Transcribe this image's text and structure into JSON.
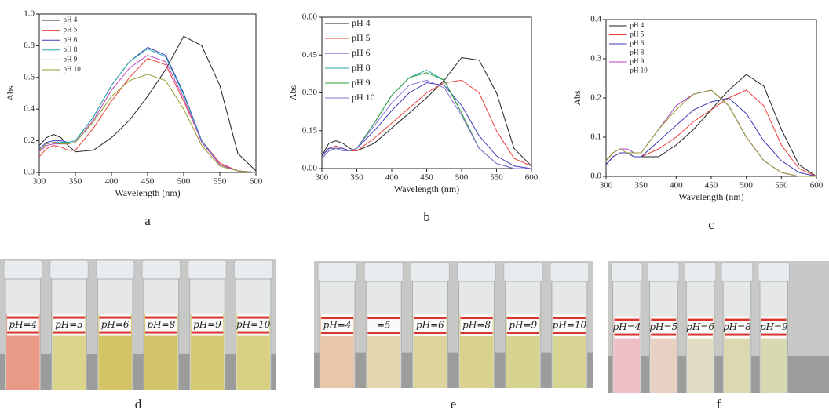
{
  "chart_data": [
    {
      "type": "line",
      "label": "a",
      "xlabel": "Wavelength (nm)",
      "ylabel": "Abs",
      "x": [
        300,
        310,
        320,
        330,
        340,
        350,
        375,
        400,
        425,
        450,
        475,
        500,
        525,
        550,
        575,
        600
      ],
      "xlim": [
        300,
        600
      ],
      "xticks": [
        300,
        350,
        400,
        450,
        500,
        550,
        600
      ],
      "ylim": [
        0,
        1
      ],
      "yticks": [
        {
          "value": 0,
          "label": "0.0"
        },
        0.2,
        0.4,
        0.6,
        0.8,
        {
          "value": 1,
          "label": "1.0"
        }
      ],
      "legend": "top-left",
      "series": [
        {
          "name": "pH 4",
          "color": "#222222",
          "values": [
            0.17,
            0.22,
            0.24,
            0.22,
            0.17,
            0.13,
            0.14,
            0.22,
            0.33,
            0.48,
            0.65,
            0.86,
            0.8,
            0.55,
            0.12,
            0.01
          ]
        },
        {
          "name": "pH 5",
          "color": "#e8403a",
          "values": [
            0.1,
            0.15,
            0.17,
            0.16,
            0.14,
            0.14,
            0.28,
            0.45,
            0.6,
            0.72,
            0.68,
            0.45,
            0.2,
            0.06,
            0.01,
            0
          ]
        },
        {
          "name": "pH 6",
          "color": "#3b3bb8",
          "values": [
            0.15,
            0.19,
            0.2,
            0.2,
            0.19,
            0.2,
            0.35,
            0.55,
            0.7,
            0.79,
            0.74,
            0.5,
            0.2,
            0.05,
            0.01,
            0
          ]
        },
        {
          "name": "pH 8",
          "color": "#2aa9a9",
          "values": [
            0.14,
            0.18,
            0.19,
            0.19,
            0.19,
            0.2,
            0.35,
            0.55,
            0.7,
            0.78,
            0.73,
            0.49,
            0.2,
            0.05,
            0.01,
            0
          ]
        },
        {
          "name": "pH 9",
          "color": "#c040c0",
          "values": [
            0.13,
            0.17,
            0.18,
            0.18,
            0.18,
            0.19,
            0.33,
            0.52,
            0.66,
            0.74,
            0.7,
            0.47,
            0.19,
            0.05,
            0.01,
            0
          ]
        },
        {
          "name": "pH 10",
          "color": "#9a9a30",
          "values": [
            0.14,
            0.18,
            0.19,
            0.18,
            0.18,
            0.19,
            0.32,
            0.48,
            0.58,
            0.62,
            0.58,
            0.4,
            0.17,
            0.04,
            0.01,
            0
          ]
        }
      ]
    },
    {
      "type": "line",
      "label": "b",
      "xlabel": "Wavelength (nm)",
      "ylabel": "Abs",
      "x": [
        300,
        310,
        320,
        330,
        340,
        350,
        375,
        400,
        425,
        450,
        475,
        500,
        525,
        550,
        575,
        600
      ],
      "xlim": [
        300,
        600
      ],
      "xticks": [
        300,
        350,
        400,
        450,
        500,
        550,
        600
      ],
      "ylim": [
        0,
        0.6
      ],
      "yticks": [
        {
          "value": 0,
          "label": "0.00"
        },
        0.15,
        {
          "value": 0.3,
          "label": "0.30"
        },
        0.45,
        {
          "value": 0.6,
          "label": "0.60"
        }
      ],
      "legend": "top-left",
      "series": [
        {
          "name": "pH 4",
          "color": "#222222",
          "values": [
            0.05,
            0.1,
            0.11,
            0.1,
            0.08,
            0.07,
            0.1,
            0.16,
            0.22,
            0.28,
            0.35,
            0.44,
            0.43,
            0.3,
            0.08,
            0.01
          ]
        },
        {
          "name": "pH 5",
          "color": "#e8403a",
          "values": [
            0.05,
            0.08,
            0.09,
            0.08,
            0.07,
            0.07,
            0.12,
            0.18,
            0.24,
            0.3,
            0.34,
            0.35,
            0.3,
            0.15,
            0.04,
            0.01
          ]
        },
        {
          "name": "pH 6",
          "color": "#3b3bb8",
          "values": [
            0.05,
            0.08,
            0.08,
            0.08,
            0.07,
            0.08,
            0.15,
            0.23,
            0.3,
            0.34,
            0.33,
            0.25,
            0.13,
            0.05,
            0.01,
            0
          ]
        },
        {
          "name": "pH 8",
          "color": "#2aa9a9",
          "values": [
            0.04,
            0.07,
            0.08,
            0.07,
            0.07,
            0.08,
            0.18,
            0.29,
            0.36,
            0.39,
            0.35,
            0.22,
            0.08,
            0.02,
            0,
            0
          ]
        },
        {
          "name": "pH 9",
          "color": "#2e9e3e",
          "values": [
            0.04,
            0.07,
            0.08,
            0.07,
            0.07,
            0.08,
            0.18,
            0.29,
            0.36,
            0.38,
            0.35,
            0.22,
            0.08,
            0.02,
            0,
            0
          ]
        },
        {
          "name": "pH 10",
          "color": "#8a6fd8",
          "values": [
            0.04,
            0.07,
            0.08,
            0.07,
            0.07,
            0.08,
            0.17,
            0.26,
            0.33,
            0.35,
            0.32,
            0.21,
            0.08,
            0.02,
            0,
            0
          ]
        }
      ]
    },
    {
      "type": "line",
      "label": "c",
      "xlabel": "Wavelength (nm)",
      "ylabel": "Abs",
      "x": [
        300,
        310,
        320,
        330,
        340,
        350,
        375,
        400,
        425,
        450,
        475,
        500,
        525,
        550,
        575,
        600
      ],
      "xlim": [
        300,
        600
      ],
      "xticks": [
        300,
        350,
        400,
        450,
        500,
        550,
        600
      ],
      "ylim": [
        0,
        0.4
      ],
      "yticks": [
        {
          "value": 0,
          "label": "0.0"
        },
        0.1,
        0.2,
        0.3,
        0.4
      ],
      "legend": "top-left",
      "series": [
        {
          "name": "pH 4",
          "color": "#222222",
          "values": [
            0.03,
            0.05,
            0.06,
            0.06,
            0.05,
            0.05,
            0.05,
            0.08,
            0.12,
            0.17,
            0.22,
            0.26,
            0.23,
            0.12,
            0.03,
            0
          ]
        },
        {
          "name": "pH 5",
          "color": "#e8403a",
          "values": [
            0.03,
            0.05,
            0.06,
            0.06,
            0.05,
            0.05,
            0.07,
            0.1,
            0.14,
            0.17,
            0.2,
            0.22,
            0.18,
            0.08,
            0.02,
            0
          ]
        },
        {
          "name": "pH 6",
          "color": "#3b3bb8",
          "values": [
            0.03,
            0.05,
            0.06,
            0.06,
            0.05,
            0.05,
            0.09,
            0.13,
            0.17,
            0.19,
            0.2,
            0.16,
            0.09,
            0.04,
            0.01,
            0
          ]
        },
        {
          "name": "pH 8",
          "color": "#2aa9a9",
          "values": [
            0.04,
            0.06,
            0.07,
            0.07,
            0.06,
            0.06,
            0.12,
            0.18,
            0.21,
            0.22,
            0.18,
            0.1,
            0.04,
            0.01,
            0,
            0
          ]
        },
        {
          "name": "pH 9",
          "color": "#c040c0",
          "values": [
            0.04,
            0.06,
            0.07,
            0.07,
            0.06,
            0.06,
            0.12,
            0.18,
            0.21,
            0.22,
            0.18,
            0.1,
            0.04,
            0.01,
            0,
            0
          ]
        },
        {
          "name": "pH 10",
          "color": "#9a9a30",
          "values": [
            0.04,
            0.06,
            0.07,
            0.06,
            0.06,
            0.06,
            0.12,
            0.17,
            0.21,
            0.22,
            0.18,
            0.1,
            0.04,
            0.01,
            0,
            0
          ]
        }
      ]
    }
  ],
  "photos": [
    {
      "label": "d",
      "tubes": [
        "pH=4",
        "pH=5",
        "pH=6",
        "pH=8",
        "pH=9",
        "pH=10"
      ],
      "colors": [
        "#e89a86",
        "#dcd48a",
        "#d4c468",
        "#d2c46a",
        "#d4ca74",
        "#d8d084"
      ]
    },
    {
      "label": "e",
      "tubes": [
        "pH=4",
        "=5",
        "pH=6",
        "pH=8",
        "pH=9",
        "pH=10"
      ],
      "colors": [
        "#e8c8a8",
        "#e6d6b0",
        "#dcd49a",
        "#d8d28e",
        "#d6d290",
        "#d8d494"
      ]
    },
    {
      "label": "f",
      "tubes": [
        "pH=4",
        "pH=5",
        "pH=6",
        "pH=8",
        "pH=9"
      ],
      "colors": [
        "#efbfc6",
        "#e9d0c4",
        "#e2dcc4",
        "#dcd8b0",
        "#d8d8b2"
      ]
    }
  ]
}
